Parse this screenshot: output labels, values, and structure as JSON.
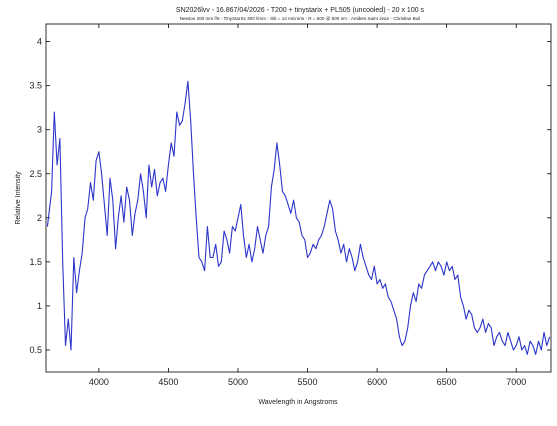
{
  "chart_data": {
    "type": "line",
    "title": "SN2026lvv - 16.867/04/2026 - T200 + tinystarix + PL505 (uncooled) - 20 x 100 s",
    "subtitle": "Newton 200 mm f/5 - TinyStarSx 300 l/mm - Slit = 14 microns - R = 500 @ 500 nm - Antibes Saint Jean - Christian Buil",
    "xlabel": "Wavelength in Angstroms",
    "ylabel": "Relative Intensity",
    "xlim": [
      3620,
      7250
    ],
    "ylim": [
      0.25,
      4.2
    ],
    "xticks": [
      4000,
      4500,
      5000,
      5500,
      6000,
      6500,
      7000
    ],
    "yticks": [
      0.5,
      1,
      1.5,
      2,
      2.5,
      3,
      3.5,
      4
    ],
    "grid": false,
    "line_color": "#2b35c9",
    "series": [
      {
        "name": "",
        "x": [
          3630,
          3660,
          3680,
          3700,
          3720,
          3740,
          3760,
          3780,
          3800,
          3820,
          3840,
          3860,
          3880,
          3900,
          3920,
          3940,
          3960,
          3980,
          4000,
          4020,
          4040,
          4060,
          4080,
          4100,
          4120,
          4140,
          4160,
          4180,
          4200,
          4220,
          4240,
          4260,
          4280,
          4300,
          4320,
          4340,
          4360,
          4380,
          4400,
          4420,
          4440,
          4460,
          4480,
          4500,
          4520,
          4540,
          4560,
          4580,
          4600,
          4620,
          4640,
          4660,
          4680,
          4700,
          4720,
          4740,
          4760,
          4780,
          4800,
          4820,
          4840,
          4860,
          4880,
          4900,
          4920,
          4940,
          4960,
          4980,
          5000,
          5020,
          5040,
          5060,
          5080,
          5100,
          5120,
          5140,
          5160,
          5180,
          5200,
          5220,
          5240,
          5260,
          5280,
          5300,
          5320,
          5340,
          5360,
          5380,
          5400,
          5420,
          5440,
          5460,
          5480,
          5500,
          5520,
          5540,
          5560,
          5580,
          5600,
          5620,
          5640,
          5660,
          5680,
          5700,
          5720,
          5740,
          5760,
          5780,
          5800,
          5820,
          5840,
          5860,
          5880,
          5900,
          5920,
          5940,
          5960,
          5980,
          6000,
          6020,
          6040,
          6060,
          6080,
          6100,
          6120,
          6140,
          6160,
          6180,
          6200,
          6220,
          6240,
          6260,
          6280,
          6300,
          6320,
          6340,
          6360,
          6380,
          6400,
          6420,
          6440,
          6460,
          6480,
          6500,
          6520,
          6540,
          6560,
          6580,
          6600,
          6620,
          6640,
          6660,
          6680,
          6700,
          6720,
          6740,
          6760,
          6780,
          6800,
          6820,
          6840,
          6860,
          6880,
          6900,
          6920,
          6940,
          6960,
          6980,
          7000,
          7020,
          7040,
          7060,
          7080,
          7100,
          7120,
          7140,
          7160,
          7180,
          7200,
          7220,
          7240
        ],
        "y": [
          1.9,
          2.3,
          3.2,
          2.6,
          2.9,
          1.5,
          0.55,
          0.85,
          0.5,
          1.55,
          1.15,
          1.4,
          1.6,
          2.0,
          2.1,
          2.4,
          2.2,
          2.65,
          2.75,
          2.5,
          2.15,
          1.8,
          2.45,
          2.2,
          1.65,
          2.0,
          2.25,
          1.95,
          2.35,
          2.2,
          1.8,
          2.05,
          2.2,
          2.5,
          2.3,
          2.0,
          2.6,
          2.35,
          2.55,
          2.25,
          2.4,
          2.45,
          2.3,
          2.6,
          2.85,
          2.7,
          3.2,
          3.05,
          3.1,
          3.3,
          3.55,
          3.1,
          2.5,
          2.0,
          1.55,
          1.5,
          1.4,
          1.9,
          1.55,
          1.55,
          1.7,
          1.45,
          1.5,
          1.85,
          1.75,
          1.6,
          1.9,
          1.85,
          2.0,
          2.15,
          1.8,
          1.55,
          1.7,
          1.5,
          1.65,
          1.9,
          1.75,
          1.6,
          1.8,
          1.9,
          2.35,
          2.55,
          2.85,
          2.6,
          2.3,
          2.25,
          2.15,
          2.05,
          2.2,
          2.0,
          1.95,
          1.8,
          1.75,
          1.55,
          1.6,
          1.7,
          1.65,
          1.75,
          1.8,
          1.9,
          2.05,
          2.2,
          2.1,
          1.85,
          1.75,
          1.6,
          1.7,
          1.5,
          1.65,
          1.55,
          1.4,
          1.5,
          1.7,
          1.55,
          1.45,
          1.35,
          1.3,
          1.45,
          1.25,
          1.3,
          1.2,
          1.25,
          1.1,
          1.05,
          0.95,
          0.85,
          0.65,
          0.55,
          0.6,
          0.75,
          1.0,
          1.15,
          1.05,
          1.25,
          1.2,
          1.35,
          1.4,
          1.45,
          1.5,
          1.4,
          1.5,
          1.45,
          1.35,
          1.5,
          1.4,
          1.45,
          1.3,
          1.35,
          1.1,
          1.0,
          0.85,
          0.95,
          0.9,
          0.75,
          0.7,
          0.75,
          0.85,
          0.7,
          0.8,
          0.75,
          0.55,
          0.65,
          0.7,
          0.6,
          0.55,
          0.7,
          0.6,
          0.5,
          0.55,
          0.65,
          0.5,
          0.55,
          0.45,
          0.6,
          0.55,
          0.45,
          0.6,
          0.5,
          0.7,
          0.55,
          0.65
        ]
      }
    ]
  }
}
